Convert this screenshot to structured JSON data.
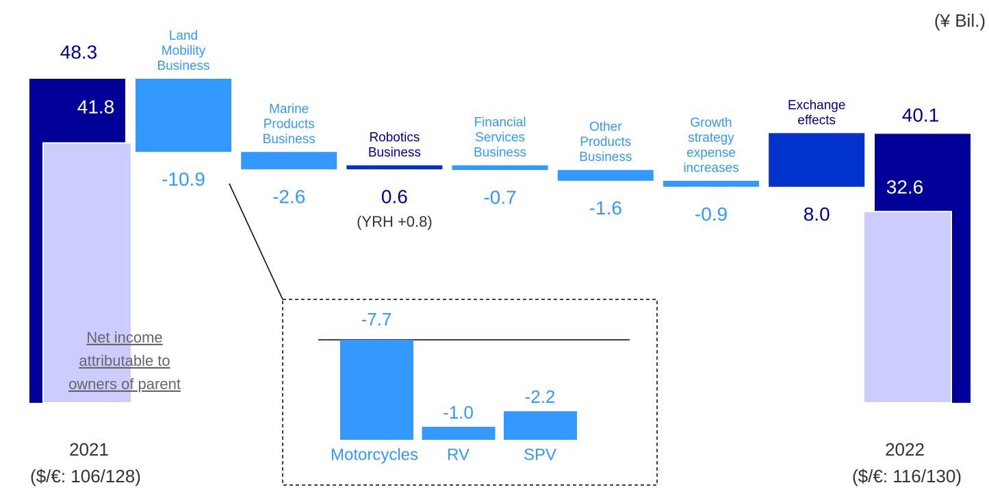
{
  "chart_data": {
    "type": "waterfall",
    "unit": "(¥ Bil.)",
    "start": {
      "label": "2021",
      "rate": "($/€: 106/128)",
      "value": 48.3,
      "net_income": 41.8
    },
    "end": {
      "label": "2022",
      "rate": "($/€: 116/130)",
      "value": 40.1,
      "net_income": 32.6
    },
    "total_color": "#000099",
    "net_income_color": "#ccccff",
    "net_income_label": [
      "Net income",
      "attributable to",
      "owners of parent"
    ],
    "categories": [
      [
        "Land",
        "Mobility",
        "Business"
      ],
      [
        "Marine",
        "Products",
        "Business"
      ],
      [
        "Robotics",
        "Business"
      ],
      [
        "Financial",
        "Services",
        "Business"
      ],
      [
        "Other",
        "Products",
        "Business"
      ],
      [
        "Growth",
        "strategy",
        "expense",
        "increases"
      ],
      [
        "Exchange",
        "effects"
      ]
    ],
    "values": [
      -10.9,
      -2.6,
      0.6,
      -0.7,
      -1.6,
      -0.9,
      8.0
    ],
    "value_labels": [
      "-10.9",
      "-2.6",
      "0.6",
      "-0.7",
      "-1.6",
      "-0.9",
      "8.0"
    ],
    "colors": [
      "#3399ff",
      "#3399ff",
      "#0033cc",
      "#3399ff",
      "#3399ff",
      "#3399ff",
      "#0033cc"
    ],
    "label_colors": [
      "#3399ff",
      "#3399ff",
      "#000099",
      "#3399ff",
      "#3399ff",
      "#3399ff",
      "#000099"
    ],
    "annotations": [
      {
        "index": 2,
        "text": "(YRH +0.8)"
      }
    ],
    "breakdown": {
      "of": 0,
      "categories": [
        "Motorcycles",
        "RV",
        "SPV"
      ],
      "values": [
        -7.7,
        -1.0,
        -2.2
      ],
      "value_labels": [
        "-7.7",
        "-1.0",
        "-2.2"
      ],
      "color": "#3399ff"
    }
  }
}
